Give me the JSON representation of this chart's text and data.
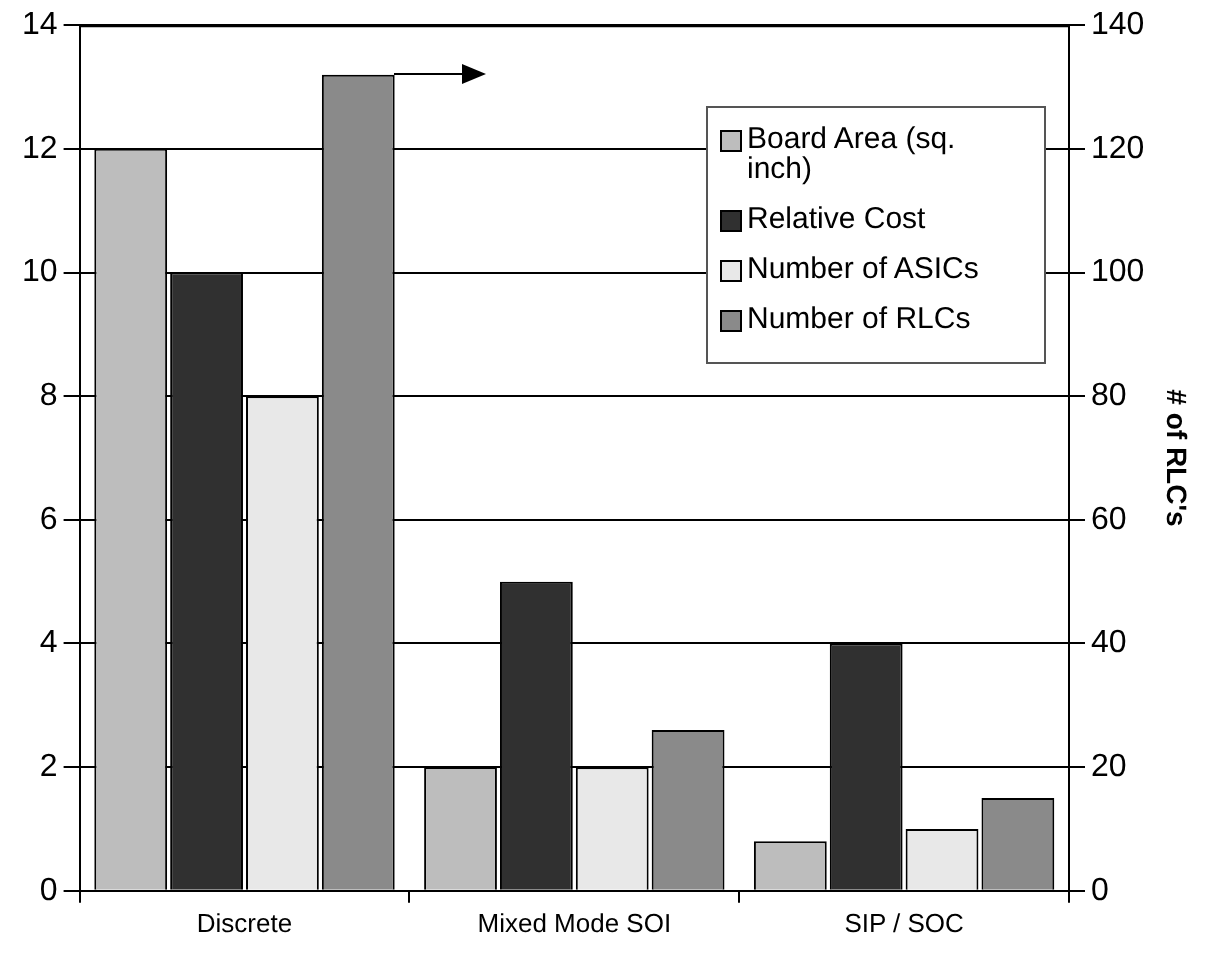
{
  "chart_data": {
    "type": "bar",
    "categories": [
      "Discrete",
      "Mixed Mode SOI",
      "SIP / SOC"
    ],
    "series": [
      {
        "name": "Board Area (sq. inch)",
        "color": "#bdbdbd",
        "values": [
          12,
          2,
          0.8
        ]
      },
      {
        "name": "Relative Cost",
        "color": "#303030",
        "values": [
          10,
          5,
          4
        ]
      },
      {
        "name": "Number of ASICs",
        "color": "#e8e8e8",
        "values": [
          8,
          2,
          1
        ]
      },
      {
        "name": "Number of RLCs",
        "color": "#8a8a8a",
        "values": [
          132,
          26,
          15
        ],
        "axis": "y2"
      }
    ],
    "y2label": "# of RLC's",
    "ylim": [
      0,
      14
    ],
    "yticks": [
      0,
      2,
      4,
      6,
      8,
      10,
      12,
      14
    ],
    "y2lim": [
      0,
      140
    ],
    "y2ticks": [
      0,
      20,
      40,
      60,
      80,
      100,
      120,
      140
    ],
    "grid": "y",
    "legend": "top right"
  }
}
